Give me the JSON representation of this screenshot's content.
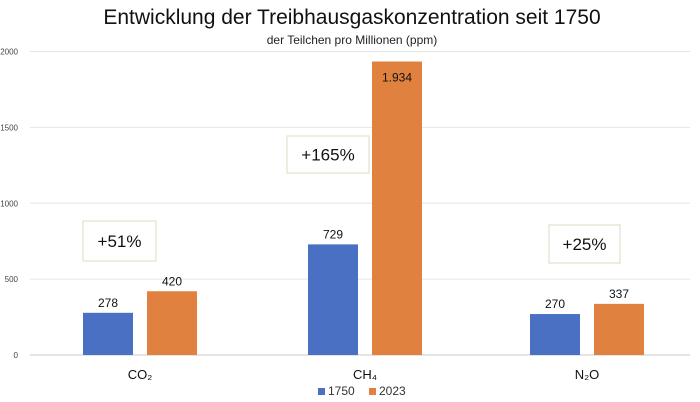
{
  "chart_data": {
    "type": "bar",
    "title": "Entwicklung der Treibhausgaskonzentration seit 1750",
    "subtitle": "der Teilchen pro Millionen (ppm)",
    "categories": [
      "CO₂",
      "CH₄",
      "N₂O"
    ],
    "series": [
      {
        "name": "1750",
        "color": "#4a70c4",
        "values": [
          278,
          729,
          270
        ],
        "labels": [
          "278",
          "729",
          "270"
        ]
      },
      {
        "name": "2023",
        "color": "#e0813f",
        "values": [
          420,
          1934,
          337
        ],
        "labels": [
          "420",
          "1.934",
          "337"
        ]
      }
    ],
    "ylim": [
      0,
      2000
    ],
    "yticks": [
      0,
      500,
      1000,
      1500,
      2000
    ],
    "grid": true,
    "legend_position": "bottom",
    "annotations": [
      "+51%",
      "+165%",
      "+25%"
    ]
  }
}
